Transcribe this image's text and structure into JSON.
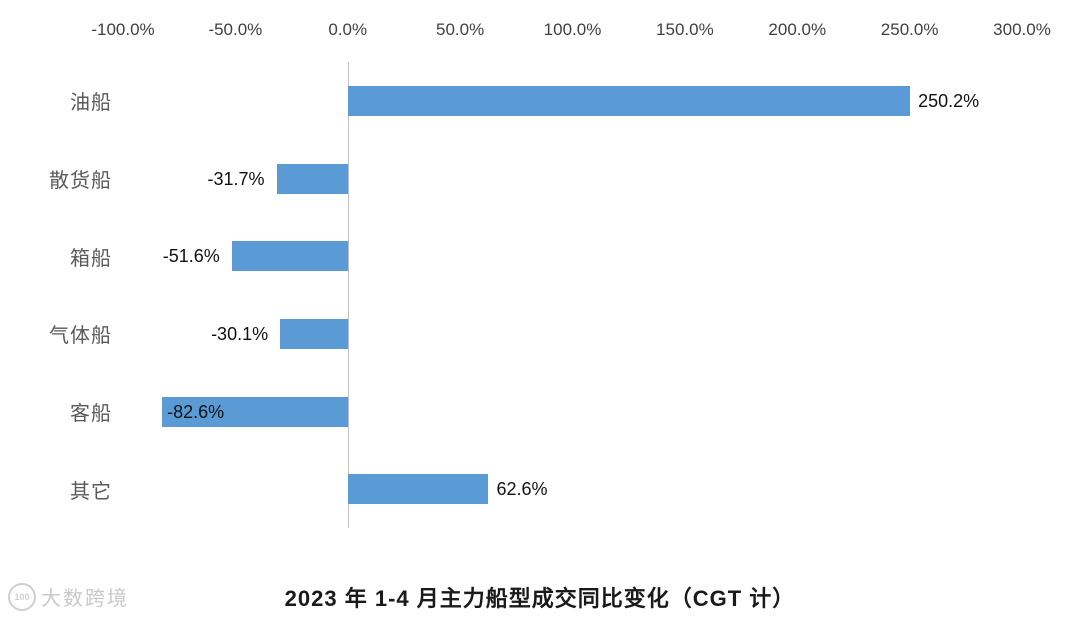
{
  "chart_data": {
    "type": "bar",
    "orientation": "horizontal",
    "title": "2023 年 1-4 月主力船型成交同比变化（CGT 计）",
    "categories": [
      "油船",
      "散货船",
      "箱船",
      "气体船",
      "客船",
      "其它"
    ],
    "values": [
      250.2,
      -31.7,
      -51.6,
      -30.1,
      -82.6,
      62.6
    ],
    "labels": [
      "250.2%",
      "-31.7%",
      "-51.6%",
      "-30.1%",
      "-82.6%",
      "62.6%"
    ],
    "label_inside": [
      false,
      false,
      false,
      false,
      true,
      false
    ],
    "xlim": [
      -100,
      300
    ],
    "x_tick_values": [
      -100,
      -50,
      0,
      50,
      100,
      150,
      200,
      250,
      300
    ],
    "x_ticks": [
      "-100.0%",
      "-50.0%",
      "0.0%",
      "50.0%",
      "100.0%",
      "150.0%",
      "200.0%",
      "250.0%",
      "300.0%"
    ],
    "xlabel": "",
    "ylabel": "",
    "bar_color": "#5b9bd5",
    "axis_color": "#bfbfbf",
    "grid": "off",
    "legend_position": "none"
  },
  "watermark": {
    "logo": "100",
    "text": "大数跨境"
  }
}
